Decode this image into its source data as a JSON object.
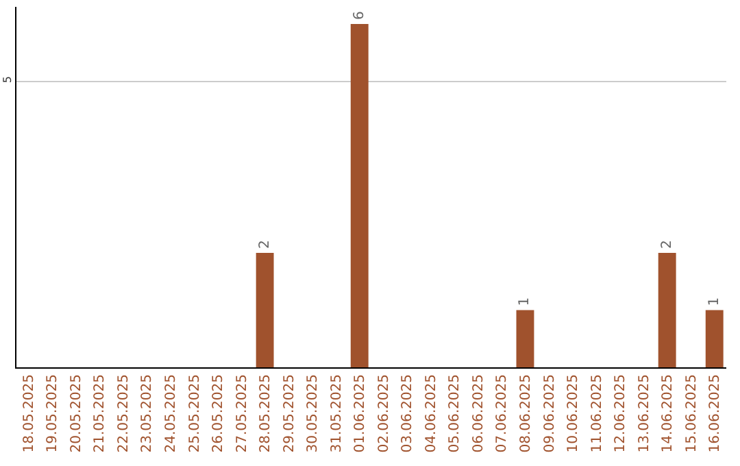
{
  "chart_data": {
    "type": "bar",
    "categories": [
      "18.05.2025",
      "19.05.2025",
      "20.05.2025",
      "21.05.2025",
      "22.05.2025",
      "23.05.2025",
      "24.05.2025",
      "25.05.2025",
      "26.05.2025",
      "27.05.2025",
      "28.05.2025",
      "29.05.2025",
      "30.05.2025",
      "31.05.2025",
      "01.06.2025",
      "02.06.2025",
      "03.06.2025",
      "04.06.2025",
      "05.06.2025",
      "06.06.2025",
      "07.06.2025",
      "08.06.2025",
      "09.06.2025",
      "10.06.2025",
      "11.06.2025",
      "12.06.2025",
      "13.06.2025",
      "14.06.2025",
      "15.06.2025",
      "16.06.2025"
    ],
    "values": [
      0,
      0,
      0,
      0,
      0,
      0,
      0,
      0,
      0,
      0,
      2,
      0,
      0,
      0,
      6,
      0,
      0,
      0,
      0,
      0,
      0,
      1,
      0,
      0,
      0,
      0,
      0,
      2,
      0,
      1
    ],
    "value_labels": [
      null,
      null,
      null,
      null,
      null,
      null,
      null,
      null,
      null,
      null,
      "2",
      null,
      null,
      null,
      "6",
      null,
      null,
      null,
      null,
      null,
      null,
      "1",
      null,
      null,
      null,
      null,
      null,
      "2",
      null,
      "1"
    ],
    "color": "#a0522d",
    "ylim": [
      0,
      6.3
    ],
    "yticks": [
      5
    ],
    "grid": "y"
  }
}
